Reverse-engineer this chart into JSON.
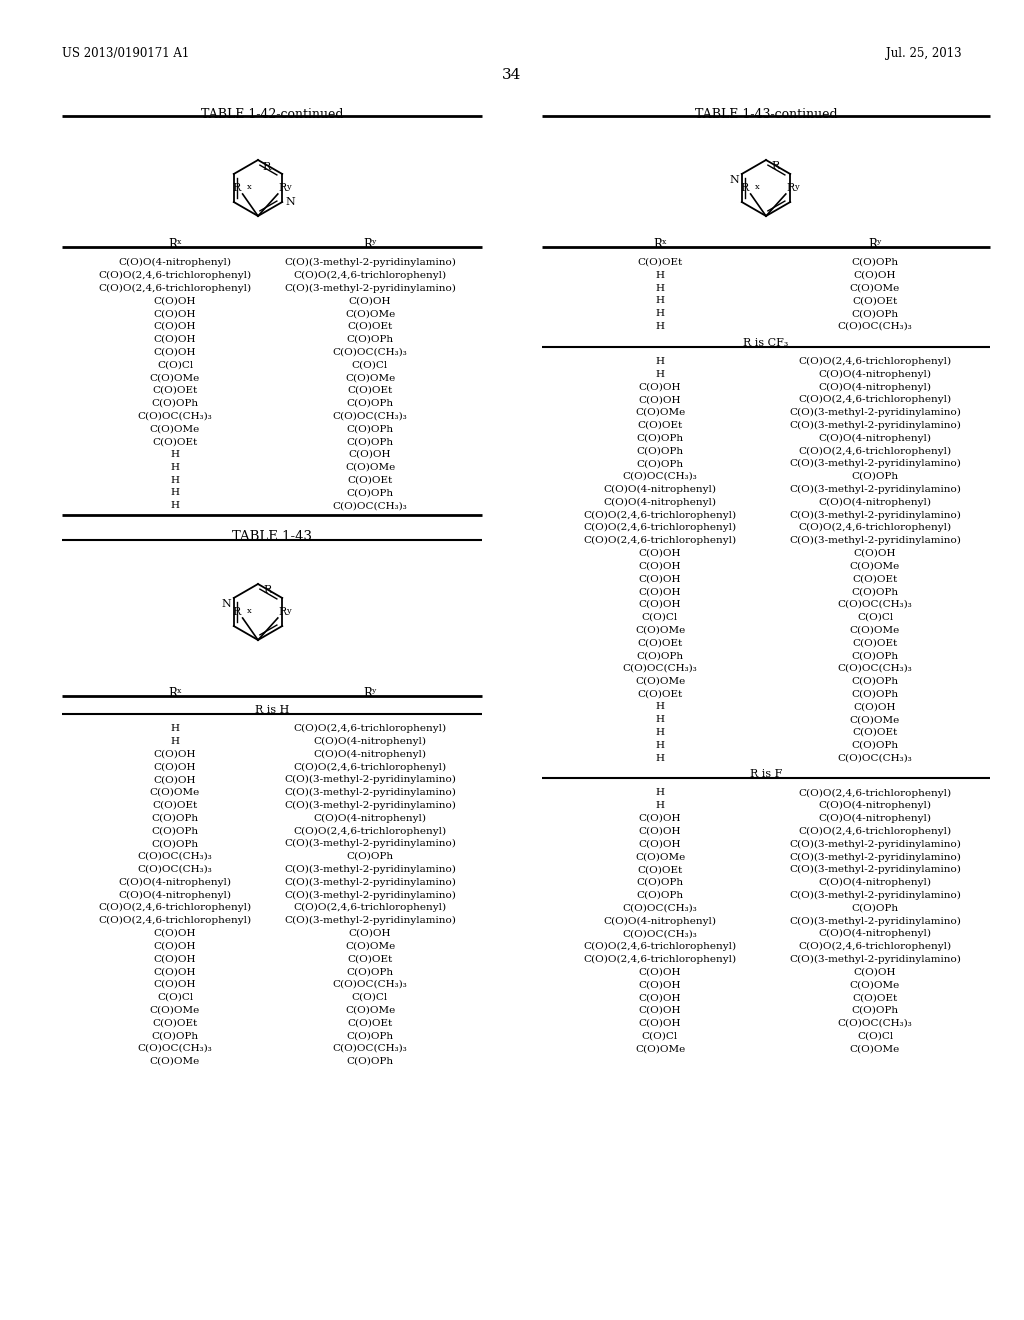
{
  "header_left": "US 2013/0190171 A1",
  "header_right": "Jul. 25, 2013",
  "page_number": "34",
  "bg_color": "#ffffff",
  "table42_title": "TABLE 1-42-continued",
  "table43_title": "TABLE 1-43-continued",
  "table43b_title": "TABLE 1-43",
  "table42_data": [
    [
      "C(O)O(4-nitrophenyl)",
      "C(O)(3-methyl-2-pyridinylamino)"
    ],
    [
      "C(O)O(2,4,6-trichlorophenyl)",
      "C(O)O(2,4,6-trichlorophenyl)"
    ],
    [
      "C(O)O(2,4,6-trichlorophenyl)",
      "C(O)(3-methyl-2-pyridinylamino)"
    ],
    [
      "C(O)OH",
      "C(O)OH"
    ],
    [
      "C(O)OH",
      "C(O)OMe"
    ],
    [
      "C(O)OH",
      "C(O)OEt"
    ],
    [
      "C(O)OH",
      "C(O)OPh"
    ],
    [
      "C(O)OH",
      "C(O)OC(CH₃)₃"
    ],
    [
      "C(O)Cl",
      "C(O)Cl"
    ],
    [
      "C(O)OMe",
      "C(O)OMe"
    ],
    [
      "C(O)OEt",
      "C(O)OEt"
    ],
    [
      "C(O)OPh",
      "C(O)OPh"
    ],
    [
      "C(O)OC(CH₃)₃",
      "C(O)OC(CH₃)₃"
    ],
    [
      "C(O)OMe",
      "C(O)OPh"
    ],
    [
      "C(O)OEt",
      "C(O)OPh"
    ],
    [
      "H",
      "C(O)OH"
    ],
    [
      "H",
      "C(O)OMe"
    ],
    [
      "H",
      "C(O)OEt"
    ],
    [
      "H",
      "C(O)OPh"
    ],
    [
      "H",
      "C(O)OC(CH₃)₃"
    ]
  ],
  "table43cont_pre_cf3": [
    [
      "C(O)OEt",
      "C(O)OPh"
    ],
    [
      "H",
      "C(O)OH"
    ],
    [
      "H",
      "C(O)OMe"
    ],
    [
      "H",
      "C(O)OEt"
    ],
    [
      "H",
      "C(O)OPh"
    ],
    [
      "H",
      "C(O)OC(CH₃)₃"
    ]
  ],
  "table43cont_cf3_data": [
    [
      "H",
      "C(O)O(2,4,6-trichlorophenyl)"
    ],
    [
      "H",
      "C(O)O(4-nitrophenyl)"
    ],
    [
      "C(O)OH",
      "C(O)O(4-nitrophenyl)"
    ],
    [
      "C(O)OH",
      "C(O)O(2,4,6-trichlorophenyl)"
    ],
    [
      "C(O)OMe",
      "C(O)(3-methyl-2-pyridinylamino)"
    ],
    [
      "C(O)OEt",
      "C(O)(3-methyl-2-pyridinylamino)"
    ],
    [
      "C(O)OPh",
      "C(O)O(4-nitrophenyl)"
    ],
    [
      "C(O)OPh",
      "C(O)O(2,4,6-trichlorophenyl)"
    ],
    [
      "C(O)OPh",
      "C(O)(3-methyl-2-pyridinylamino)"
    ],
    [
      "C(O)OC(CH₃)₃",
      "C(O)OPh"
    ],
    [
      "C(O)O(4-nitrophenyl)",
      "C(O)(3-methyl-2-pyridinylamino)"
    ],
    [
      "C(O)O(4-nitrophenyl)",
      "C(O)O(4-nitrophenyl)"
    ],
    [
      "C(O)O(2,4,6-trichlorophenyl)",
      "C(O)(3-methyl-2-pyridinylamino)"
    ],
    [
      "C(O)O(2,4,6-trichlorophenyl)",
      "C(O)O(2,4,6-trichlorophenyl)"
    ],
    [
      "C(O)O(2,4,6-trichlorophenyl)",
      "C(O)(3-methyl-2-pyridinylamino)"
    ],
    [
      "C(O)OH",
      "C(O)OH"
    ],
    [
      "C(O)OH",
      "C(O)OMe"
    ],
    [
      "C(O)OH",
      "C(O)OEt"
    ],
    [
      "C(O)OH",
      "C(O)OPh"
    ],
    [
      "C(O)OH",
      "C(O)OC(CH₃)₃"
    ],
    [
      "C(O)Cl",
      "C(O)Cl"
    ],
    [
      "C(O)OMe",
      "C(O)OMe"
    ],
    [
      "C(O)OEt",
      "C(O)OEt"
    ],
    [
      "C(O)OPh",
      "C(O)OPh"
    ],
    [
      "C(O)OC(CH₃)₃",
      "C(O)OC(CH₃)₃"
    ],
    [
      "C(O)OMe",
      "C(O)OPh"
    ],
    [
      "C(O)OEt",
      "C(O)OPh"
    ],
    [
      "H",
      "C(O)OH"
    ],
    [
      "H",
      "C(O)OMe"
    ],
    [
      "H",
      "C(O)OEt"
    ],
    [
      "H",
      "C(O)OPh"
    ],
    [
      "H",
      "C(O)OC(CH₃)₃"
    ]
  ],
  "table43cont_f_data": [
    [
      "H",
      "C(O)O(2,4,6-trichlorophenyl)"
    ],
    [
      "H",
      "C(O)O(4-nitrophenyl)"
    ],
    [
      "C(O)OH",
      "C(O)O(4-nitrophenyl)"
    ],
    [
      "C(O)OH",
      "C(O)O(2,4,6-trichlorophenyl)"
    ],
    [
      "C(O)OH",
      "C(O)(3-methyl-2-pyridinylamino)"
    ],
    [
      "C(O)OMe",
      "C(O)(3-methyl-2-pyridinylamino)"
    ],
    [
      "C(O)OEt",
      "C(O)(3-methyl-2-pyridinylamino)"
    ],
    [
      "C(O)OPh",
      "C(O)O(4-nitrophenyl)"
    ],
    [
      "C(O)OPh",
      "C(O)(3-methyl-2-pyridinylamino)"
    ],
    [
      "C(O)OC(CH₃)₃",
      "C(O)OPh"
    ],
    [
      "C(O)O(4-nitrophenyl)",
      "C(O)(3-methyl-2-pyridinylamino)"
    ],
    [
      "C(O)OC(CH₃)₃",
      "C(O)O(4-nitrophenyl)"
    ],
    [
      "C(O)O(2,4,6-trichlorophenyl)",
      "C(O)O(2,4,6-trichlorophenyl)"
    ],
    [
      "C(O)O(2,4,6-trichlorophenyl)",
      "C(O)(3-methyl-2-pyridinylamino)"
    ],
    [
      "C(O)OH",
      "C(O)OH"
    ],
    [
      "C(O)OH",
      "C(O)OMe"
    ],
    [
      "C(O)OH",
      "C(O)OEt"
    ],
    [
      "C(O)OH",
      "C(O)OPh"
    ],
    [
      "C(O)OH",
      "C(O)OC(CH₃)₃"
    ],
    [
      "C(O)Cl",
      "C(O)Cl"
    ],
    [
      "C(O)OMe",
      "C(O)OMe"
    ]
  ],
  "table43b_rh_data": [
    [
      "H",
      "C(O)O(2,4,6-trichlorophenyl)"
    ],
    [
      "H",
      "C(O)O(4-nitrophenyl)"
    ],
    [
      "C(O)OH",
      "C(O)O(4-nitrophenyl)"
    ],
    [
      "C(O)OH",
      "C(O)O(2,4,6-trichlorophenyl)"
    ],
    [
      "C(O)OH",
      "C(O)(3-methyl-2-pyridinylamino)"
    ],
    [
      "C(O)OMe",
      "C(O)(3-methyl-2-pyridinylamino)"
    ],
    [
      "C(O)OEt",
      "C(O)(3-methyl-2-pyridinylamino)"
    ],
    [
      "C(O)OPh",
      "C(O)O(4-nitrophenyl)"
    ],
    [
      "C(O)OPh",
      "C(O)O(2,4,6-trichlorophenyl)"
    ],
    [
      "C(O)OPh",
      "C(O)(3-methyl-2-pyridinylamino)"
    ],
    [
      "C(O)OC(CH₃)₃",
      "C(O)OPh"
    ],
    [
      "C(O)OC(CH₃)₃",
      "C(O)(3-methyl-2-pyridinylamino)"
    ],
    [
      "C(O)O(4-nitrophenyl)",
      "C(O)(3-methyl-2-pyridinylamino)"
    ],
    [
      "C(O)O(4-nitrophenyl)",
      "C(O)(3-methyl-2-pyridinylamino)"
    ],
    [
      "C(O)O(2,4,6-trichlorophenyl)",
      "C(O)O(2,4,6-trichlorophenyl)"
    ],
    [
      "C(O)O(2,4,6-trichlorophenyl)",
      "C(O)(3-methyl-2-pyridinylamino)"
    ],
    [
      "C(O)OH",
      "C(O)OH"
    ],
    [
      "C(O)OH",
      "C(O)OMe"
    ],
    [
      "C(O)OH",
      "C(O)OEt"
    ],
    [
      "C(O)OH",
      "C(O)OPh"
    ],
    [
      "C(O)OH",
      "C(O)OC(CH₃)₃"
    ],
    [
      "C(O)Cl",
      "C(O)Cl"
    ],
    [
      "C(O)OMe",
      "C(O)OMe"
    ],
    [
      "C(O)OEt",
      "C(O)OEt"
    ],
    [
      "C(O)OPh",
      "C(O)OPh"
    ],
    [
      "C(O)OC(CH₃)₃",
      "C(O)OC(CH₃)₃"
    ],
    [
      "C(O)OMe",
      "C(O)OPh"
    ]
  ]
}
